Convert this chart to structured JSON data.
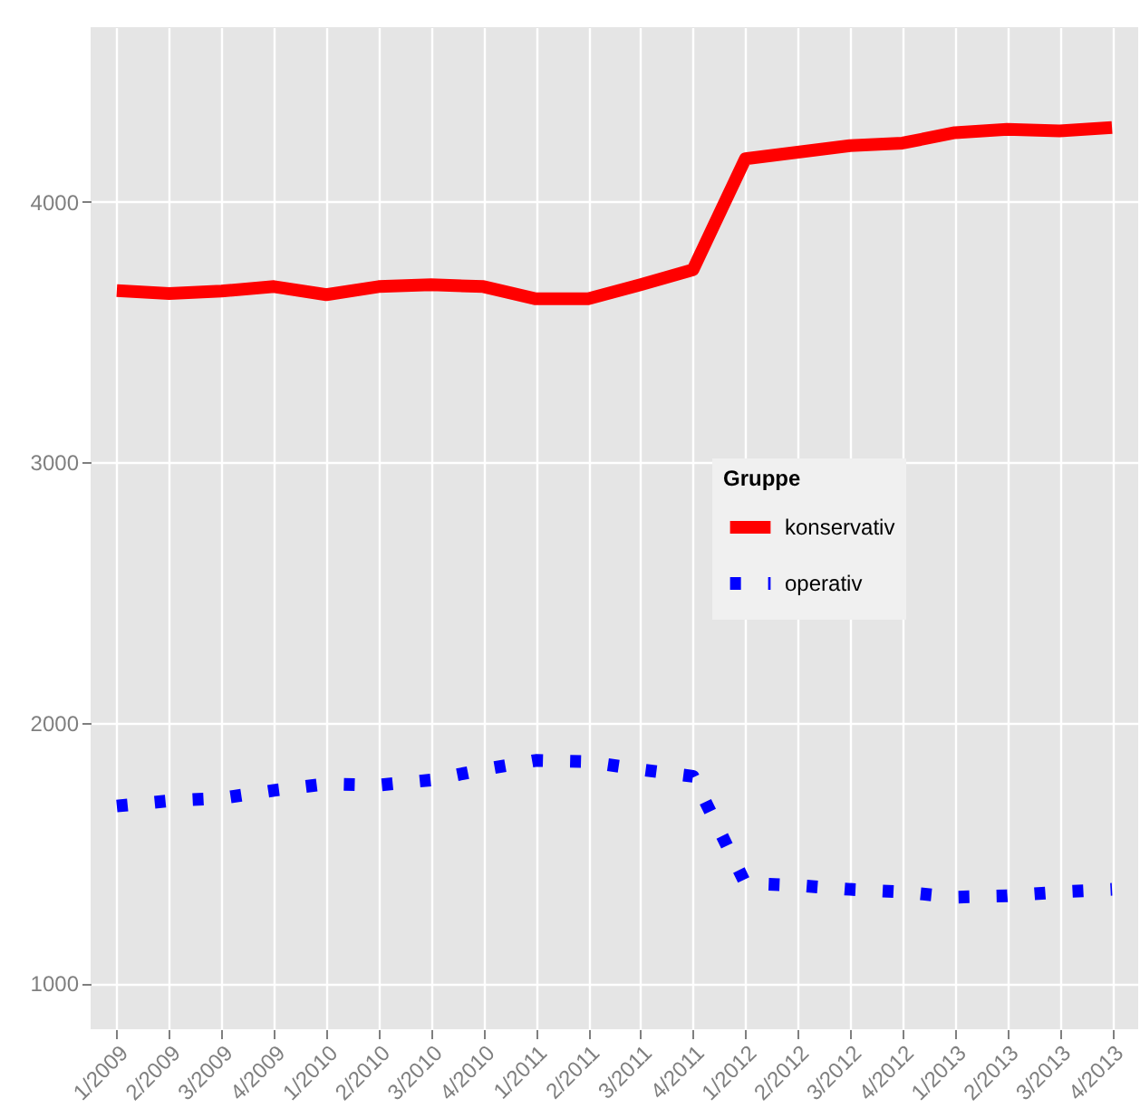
{
  "chart_data": {
    "type": "line",
    "legend_title": "Gruppe",
    "legend": "right",
    "grid": true,
    "categories": [
      "1/2009",
      "2/2009",
      "3/2009",
      "4/2009",
      "1/2010",
      "2/2010",
      "3/2010",
      "4/2010",
      "1/2011",
      "2/2011",
      "3/2011",
      "4/2011",
      "1/2012",
      "2/2012",
      "3/2012",
      "4/2012",
      "1/2013",
      "2/2013",
      "3/2013",
      "4/2013"
    ],
    "ylim": [
      823,
      4670
    ],
    "yticks": [
      1000,
      2000,
      3000,
      4000
    ],
    "series": [
      {
        "name": "konservativ",
        "color": "#ff0000",
        "line_style": "solid",
        "values": [
          3659,
          3647,
          3657,
          3674,
          3643,
          3674,
          3681,
          3674,
          3627,
          3627,
          3681,
          3739,
          4165,
          4190,
          4215,
          4225,
          4265,
          4278,
          4272,
          4285
        ]
      },
      {
        "name": "operativ",
        "color": "#0000ff",
        "line_style": "dotted",
        "values": [
          1680,
          1700,
          1710,
          1740,
          1765,
          1760,
          1780,
          1820,
          1855,
          1850,
          1820,
          1794,
          1383,
          1375,
          1360,
          1350,
          1330,
          1335,
          1350,
          1360
        ]
      }
    ]
  }
}
